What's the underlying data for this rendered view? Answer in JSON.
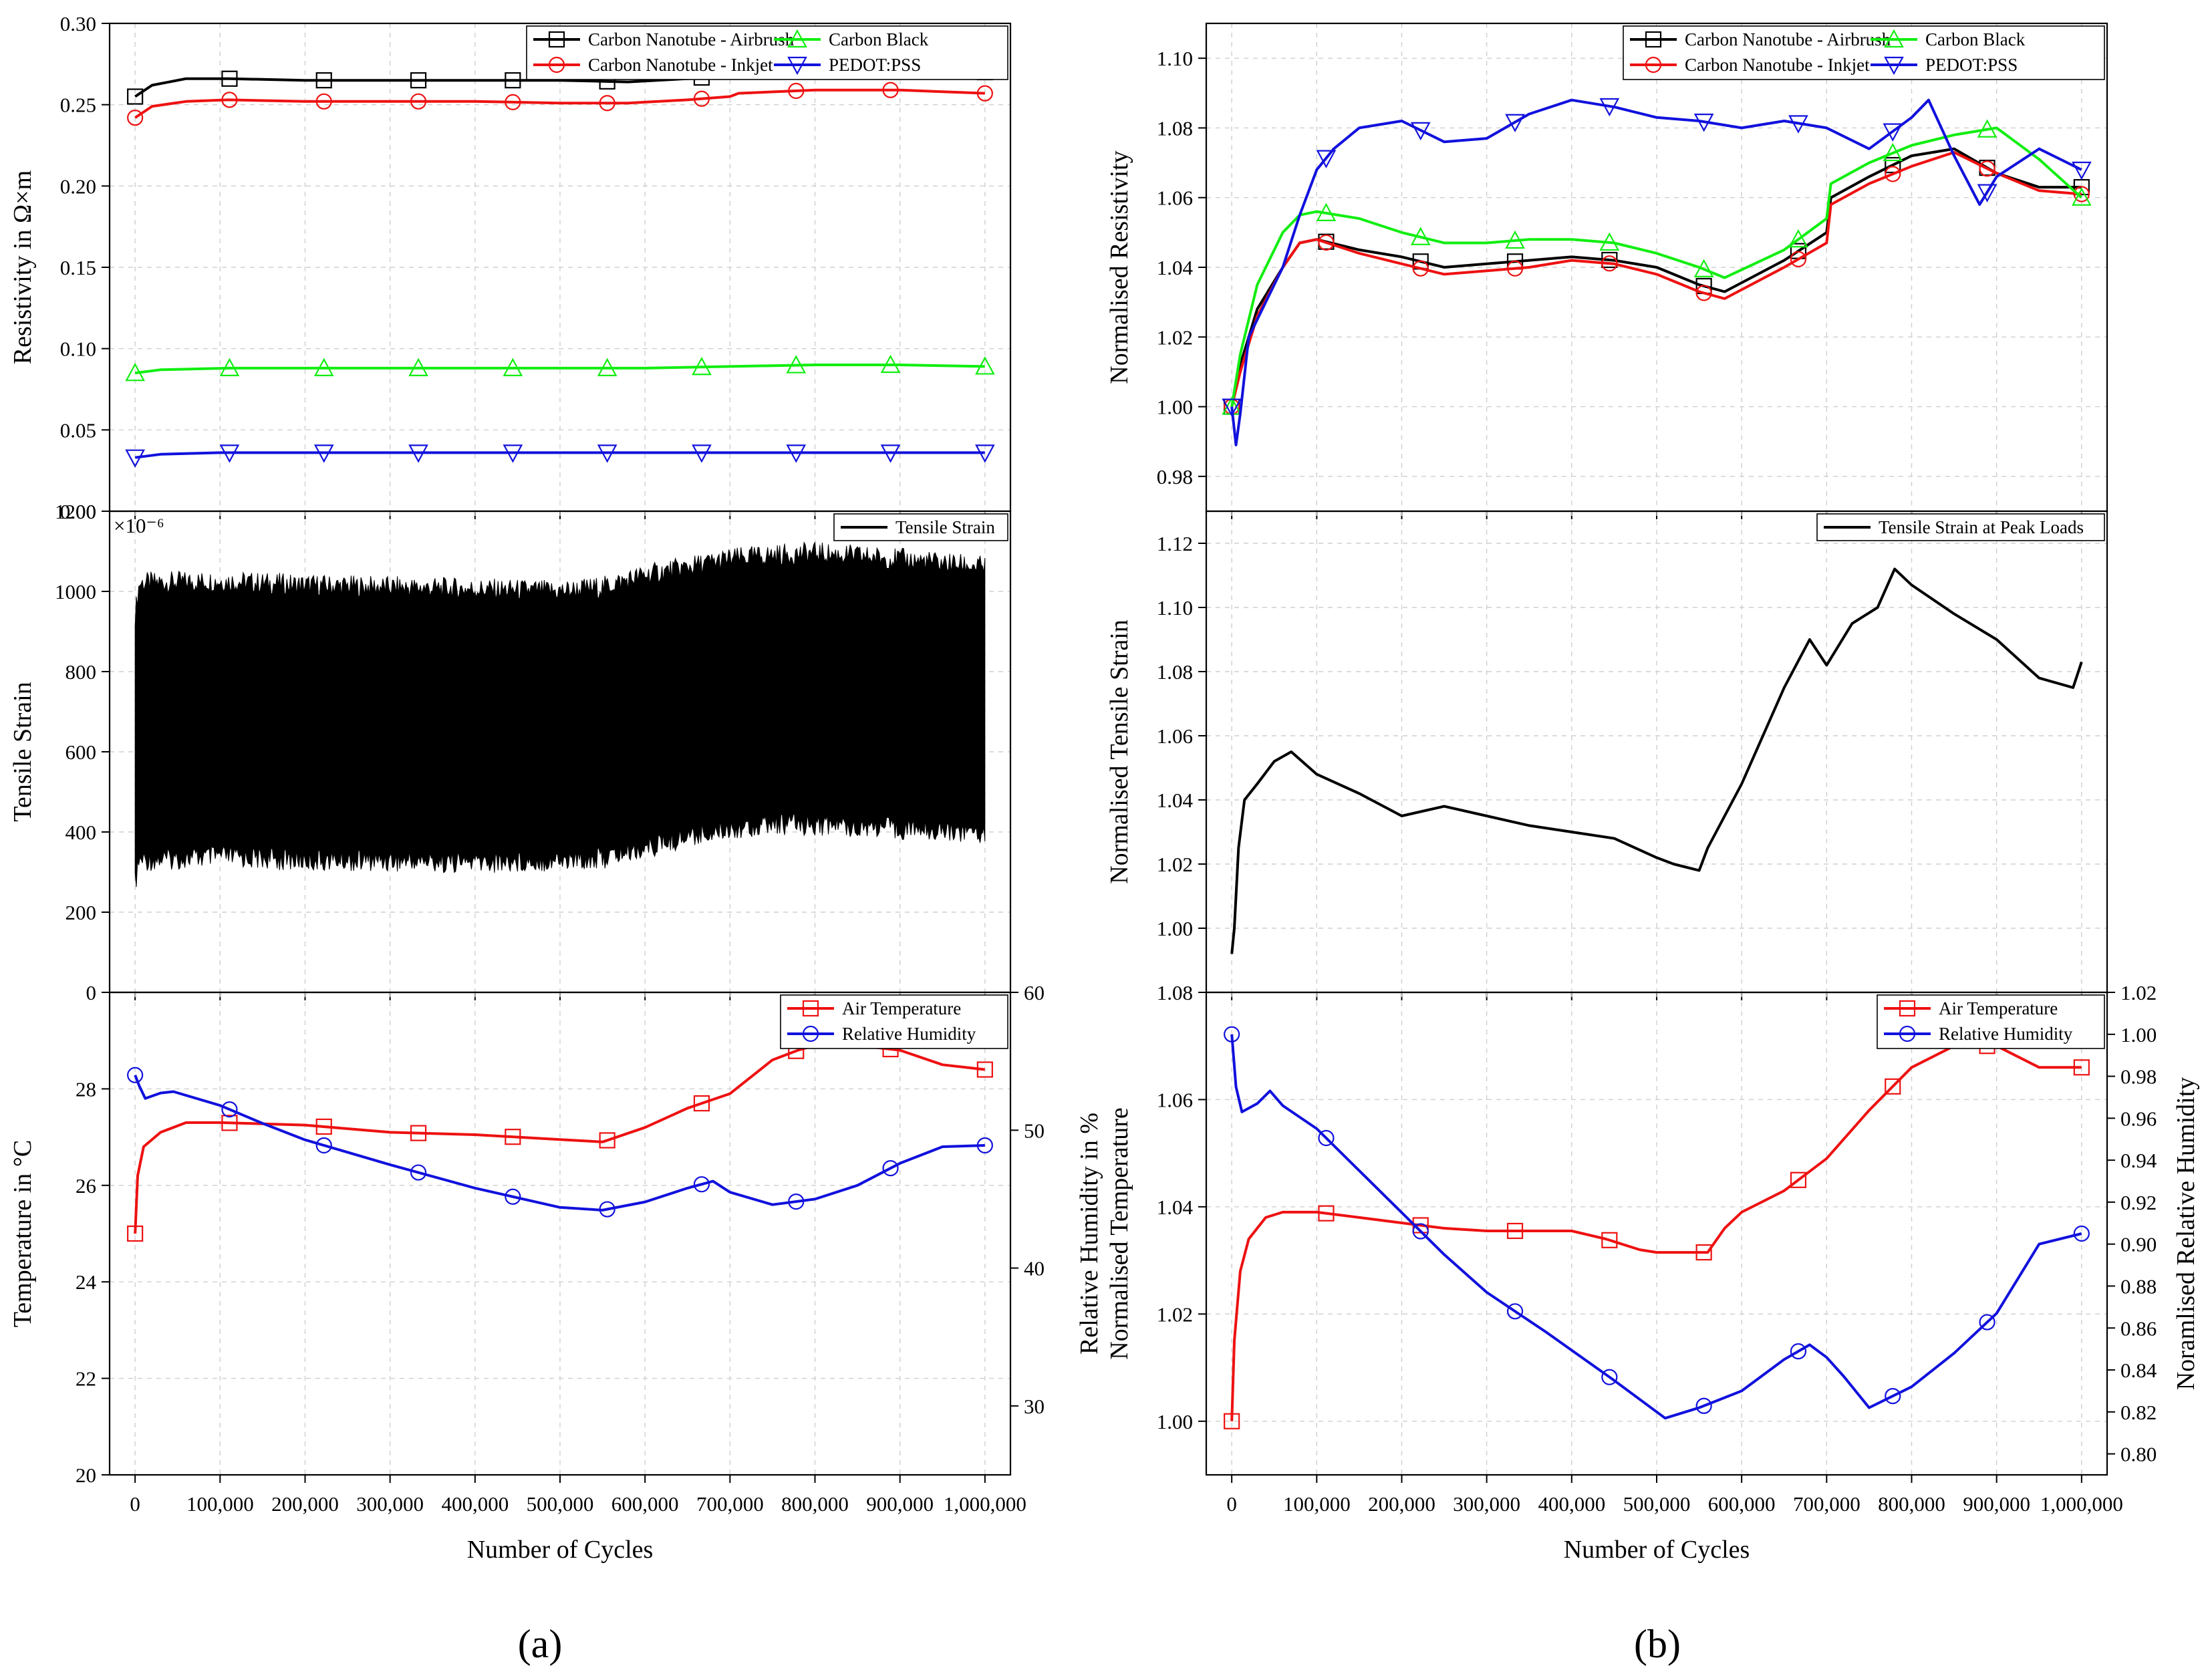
{
  "figure_labels": {
    "a": "(a)",
    "b": "(b)"
  },
  "colors": {
    "black": "#000000",
    "red": "#ee1111",
    "green": "#11ee11",
    "blue": "#1111dd"
  },
  "chart_data": [
    {
      "id": "a-top",
      "panel": "a",
      "type": "line",
      "ylabel": "Resistivity in Ω×m",
      "xlim": [
        0,
        1000000
      ],
      "ylim": [
        0,
        0.3
      ],
      "yticks": [
        0,
        0.05,
        0.1,
        0.15,
        0.2,
        0.25,
        0.3
      ],
      "ytick_labels": [
        "0.00",
        "0.05",
        "0.10",
        "0.15",
        "0.20",
        "0.25",
        "0.30"
      ],
      "legend_placement": "top-right",
      "grid": true,
      "series": [
        {
          "name": "Carbon Nanotube - Airbrush",
          "color": "#000000",
          "marker": "square",
          "x": [
            0,
            20000,
            60000,
            110000,
            200000,
            300000,
            400000,
            500000,
            580000,
            650000,
            700000,
            710000,
            800000,
            900000,
            1000000
          ],
          "y": [
            0.255,
            0.262,
            0.266,
            0.266,
            0.265,
            0.265,
            0.265,
            0.265,
            0.264,
            0.266,
            0.268,
            0.271,
            0.273,
            0.273,
            0.27
          ]
        },
        {
          "name": "Carbon Nanotube - Inkjet",
          "color": "#ee1111",
          "marker": "circle",
          "x": [
            0,
            20000,
            60000,
            110000,
            200000,
            300000,
            400000,
            500000,
            580000,
            650000,
            700000,
            710000,
            800000,
            900000,
            1000000
          ],
          "y": [
            0.242,
            0.249,
            0.252,
            0.253,
            0.252,
            0.252,
            0.252,
            0.251,
            0.251,
            0.253,
            0.255,
            0.257,
            0.259,
            0.259,
            0.257
          ]
        },
        {
          "name": "Carbon Black",
          "color": "#11ee11",
          "marker": "triangle-up",
          "x": [
            0,
            30000,
            110000,
            300000,
            500000,
            600000,
            700000,
            800000,
            900000,
            1000000
          ],
          "y": [
            0.085,
            0.087,
            0.088,
            0.088,
            0.088,
            0.088,
            0.089,
            0.09,
            0.09,
            0.089
          ]
        },
        {
          "name": "PEDOT:PSS",
          "color": "#1111dd",
          "marker": "triangle-down",
          "x": [
            0,
            30000,
            100000,
            300000,
            500000,
            700000,
            900000,
            1000000
          ],
          "y": [
            0.033,
            0.035,
            0.036,
            0.036,
            0.036,
            0.036,
            0.036,
            0.036
          ]
        }
      ]
    },
    {
      "id": "a-mid",
      "panel": "a",
      "type": "area",
      "ylabel": "Tensile Strain",
      "scale_label": "×10⁻⁶",
      "xlim": [
        0,
        1000000
      ],
      "ylim": [
        0,
        1200
      ],
      "yticks": [
        0,
        200,
        400,
        600,
        800,
        1000,
        1200
      ],
      "ytick_labels": [
        "0",
        "200",
        "400",
        "600",
        "800",
        "1000",
        "1200"
      ],
      "legend_placement": "top-right",
      "grid": true,
      "series": [
        {
          "name": "Tensile Strain",
          "color": "#000000",
          "x": [
            0,
            5000,
            100000,
            200000,
            300000,
            400000,
            500000,
            550000,
            600000,
            650000,
            700000,
            750000,
            800000,
            900000,
            1000000
          ],
          "upper": [
            930,
            1010,
            1015,
            1005,
            1000,
            995,
            990,
            1000,
            1030,
            1050,
            1070,
            1080,
            1085,
            1070,
            1050
          ],
          "lower": [
            280,
            340,
            350,
            340,
            340,
            335,
            340,
            345,
            370,
            400,
            420,
            430,
            430,
            420,
            410
          ]
        }
      ]
    },
    {
      "id": "a-bot",
      "panel": "a",
      "type": "line",
      "xlabel": "Number of Cycles",
      "ylabel": "Temperature in °C",
      "ylabel_right": "Relative Humidity in %",
      "xlim": [
        0,
        1000000
      ],
      "ylim": [
        20,
        30
      ],
      "ylim_right": [
        25,
        60
      ],
      "xticks": [
        0,
        100000,
        200000,
        300000,
        400000,
        500000,
        600000,
        700000,
        800000,
        900000,
        1000000
      ],
      "xtick_labels": [
        "0",
        "100,000",
        "200,000",
        "300,000",
        "400,000",
        "500,000",
        "600,000",
        "700,000",
        "800,000",
        "900,000",
        "1,000,000"
      ],
      "yticks": [
        20,
        22,
        24,
        26,
        28
      ],
      "ytick_labels": [
        "20",
        "22",
        "24",
        "26",
        "28"
      ],
      "yticks_right": [
        30,
        40,
        50,
        60
      ],
      "ytick_labels_right": [
        "30",
        "40",
        "50",
        "60"
      ],
      "legend_placement": "top-right",
      "grid": true,
      "series": [
        {
          "name": "Air Temperature",
          "color": "#ee1111",
          "marker": "square",
          "axis": "left",
          "x": [
            0,
            3000,
            10000,
            30000,
            60000,
            100000,
            200000,
            300000,
            400000,
            500000,
            550000,
            600000,
            650000,
            700000,
            750000,
            780000,
            800000,
            850000,
            900000,
            950000,
            1000000
          ],
          "y": [
            25.0,
            26.2,
            26.8,
            27.1,
            27.3,
            27.3,
            27.25,
            27.1,
            27.05,
            26.95,
            26.9,
            27.2,
            27.6,
            27.9,
            28.6,
            28.8,
            28.9,
            28.9,
            28.8,
            28.5,
            28.4
          ]
        },
        {
          "name": "Relative Humidity",
          "color": "#1111dd",
          "marker": "circle",
          "axis": "right",
          "x": [
            0,
            5000,
            12000,
            30000,
            45000,
            100000,
            150000,
            200000,
            300000,
            400000,
            500000,
            550000,
            600000,
            650000,
            680000,
            700000,
            750000,
            800000,
            850000,
            900000,
            950000,
            1000000
          ],
          "y": [
            54,
            53.2,
            52.3,
            52.7,
            52.8,
            51.8,
            50.5,
            49.3,
            47.5,
            45.8,
            44.4,
            44.2,
            44.8,
            45.8,
            46.3,
            45.5,
            44.6,
            45.0,
            46.0,
            47.6,
            48.8,
            48.9
          ]
        }
      ]
    },
    {
      "id": "b-top",
      "panel": "b",
      "type": "line",
      "ylabel": "Normalised Resistivity",
      "xlim": [
        0,
        1000000
      ],
      "ylim": [
        0.97,
        1.11
      ],
      "yticks": [
        0.98,
        1.0,
        1.02,
        1.04,
        1.06,
        1.08,
        1.1
      ],
      "ytick_labels": [
        "0.98",
        "1.00",
        "1.02",
        "1.04",
        "1.06",
        "1.08",
        "1.10"
      ],
      "legend_placement": "top-right",
      "grid": true,
      "series": [
        {
          "name": "Carbon Nanotube - Airbrush",
          "color": "#000000",
          "marker": "square",
          "x": [
            0,
            10000,
            30000,
            60000,
            80000,
            100000,
            150000,
            200000,
            250000,
            300000,
            350000,
            400000,
            450000,
            500000,
            550000,
            580000,
            650000,
            700000,
            705000,
            750000,
            800000,
            850000,
            900000,
            950000,
            1000000
          ],
          "y": [
            1.0,
            1.012,
            1.028,
            1.04,
            1.047,
            1.048,
            1.045,
            1.043,
            1.04,
            1.041,
            1.042,
            1.043,
            1.042,
            1.04,
            1.035,
            1.033,
            1.042,
            1.05,
            1.06,
            1.066,
            1.072,
            1.074,
            1.067,
            1.063,
            1.063
          ]
        },
        {
          "name": "Carbon Nanotube - Inkjet",
          "color": "#ee1111",
          "marker": "circle",
          "x": [
            0,
            10000,
            30000,
            60000,
            80000,
            100000,
            150000,
            200000,
            250000,
            300000,
            350000,
            400000,
            450000,
            500000,
            550000,
            580000,
            650000,
            700000,
            705000,
            750000,
            800000,
            850000,
            900000,
            950000,
            1000000
          ],
          "y": [
            1.0,
            1.01,
            1.026,
            1.04,
            1.047,
            1.048,
            1.044,
            1.041,
            1.038,
            1.039,
            1.04,
            1.042,
            1.041,
            1.038,
            1.033,
            1.031,
            1.04,
            1.047,
            1.058,
            1.064,
            1.069,
            1.073,
            1.067,
            1.062,
            1.061
          ]
        },
        {
          "name": "Carbon Black",
          "color": "#11ee11",
          "marker": "triangle-up",
          "x": [
            0,
            10000,
            30000,
            60000,
            80000,
            100000,
            150000,
            200000,
            250000,
            300000,
            350000,
            400000,
            450000,
            500000,
            550000,
            580000,
            650000,
            700000,
            705000,
            750000,
            800000,
            850000,
            900000,
            950000,
            1000000
          ],
          "y": [
            1.0,
            1.015,
            1.035,
            1.05,
            1.055,
            1.056,
            1.054,
            1.05,
            1.047,
            1.047,
            1.048,
            1.048,
            1.047,
            1.044,
            1.04,
            1.037,
            1.045,
            1.054,
            1.064,
            1.07,
            1.075,
            1.078,
            1.08,
            1.071,
            1.06
          ]
        },
        {
          "name": "PEDOT:PSS",
          "color": "#1111dd",
          "marker": "triangle-down",
          "x": [
            0,
            5000,
            10000,
            20000,
            40000,
            60000,
            80000,
            100000,
            120000,
            150000,
            200000,
            250000,
            300000,
            350000,
            400000,
            450000,
            500000,
            550000,
            600000,
            650000,
            700000,
            750000,
            800000,
            820000,
            850000,
            880000,
            900000,
            950000,
            1000000
          ],
          "y": [
            1.0,
            0.989,
            0.998,
            1.02,
            1.03,
            1.04,
            1.055,
            1.068,
            1.074,
            1.08,
            1.082,
            1.076,
            1.077,
            1.084,
            1.088,
            1.086,
            1.083,
            1.082,
            1.08,
            1.082,
            1.08,
            1.074,
            1.083,
            1.088,
            1.072,
            1.058,
            1.066,
            1.074,
            1.068
          ]
        }
      ]
    },
    {
      "id": "b-mid",
      "panel": "b",
      "type": "line",
      "ylabel": "Normalised Tensile Strain",
      "xlim": [
        0,
        1000000
      ],
      "ylim": [
        0.98,
        1.13
      ],
      "yticks": [
        1.0,
        1.02,
        1.04,
        1.06,
        1.08,
        1.1,
        1.12
      ],
      "ytick_labels": [
        "1.00",
        "1.02",
        "1.04",
        "1.06",
        "1.08",
        "1.10",
        "1.12"
      ],
      "legend_placement": "top-right",
      "grid": true,
      "series": [
        {
          "name": "Tensile Strain at Peak Loads",
          "color": "#000000",
          "x": [
            0,
            3000,
            8000,
            15000,
            30000,
            50000,
            70000,
            100000,
            150000,
            200000,
            250000,
            300000,
            350000,
            400000,
            450000,
            500000,
            520000,
            550000,
            560000,
            600000,
            650000,
            680000,
            700000,
            730000,
            760000,
            780000,
            800000,
            850000,
            900000,
            950000,
            990000,
            1000000
          ],
          "y": [
            0.992,
            1.0,
            1.025,
            1.04,
            1.045,
            1.052,
            1.055,
            1.048,
            1.042,
            1.035,
            1.038,
            1.035,
            1.032,
            1.03,
            1.028,
            1.022,
            1.02,
            1.018,
            1.025,
            1.045,
            1.075,
            1.09,
            1.082,
            1.095,
            1.1,
            1.112,
            1.107,
            1.098,
            1.09,
            1.078,
            1.075,
            1.083
          ]
        }
      ]
    },
    {
      "id": "b-bot",
      "panel": "b",
      "type": "line",
      "xlabel": "Number of Cycles",
      "ylabel": "Normalised Temperature",
      "ylabel_right": "Noramlised Relative Humidity",
      "xlim": [
        0,
        1000000
      ],
      "ylim": [
        0.99,
        1.08
      ],
      "ylim_right": [
        0.79,
        1.02
      ],
      "xticks": [
        0,
        100000,
        200000,
        300000,
        400000,
        500000,
        600000,
        700000,
        800000,
        900000,
        1000000
      ],
      "xtick_labels": [
        "0",
        "100,000",
        "200,000",
        "300,000",
        "400,000",
        "500,000",
        "600,000",
        "700,000",
        "800,000",
        "900,000",
        "1,000,000"
      ],
      "yticks": [
        1.0,
        1.02,
        1.04,
        1.06,
        1.08
      ],
      "ytick_labels": [
        "1.00",
        "1.02",
        "1.04",
        "1.06",
        "1.08"
      ],
      "yticks_right": [
        0.8,
        0.82,
        0.84,
        0.86,
        0.88,
        0.9,
        0.92,
        0.94,
        0.96,
        0.98,
        1.0,
        1.02
      ],
      "ytick_labels_right": [
        "0.80",
        "0.82",
        "0.84",
        "0.86",
        "0.88",
        "0.90",
        "0.92",
        "0.94",
        "0.96",
        "0.98",
        "1.00",
        "1.02"
      ],
      "legend_placement": "top-right",
      "grid": true,
      "series": [
        {
          "name": "Air Temperature",
          "color": "#ee1111",
          "marker": "square",
          "axis": "left",
          "x": [
            0,
            3000,
            10000,
            20000,
            40000,
            60000,
            100000,
            150000,
            200000,
            250000,
            300000,
            400000,
            440000,
            480000,
            500000,
            560000,
            580000,
            600000,
            650000,
            700000,
            750000,
            800000,
            850000,
            900000,
            950000,
            1000000
          ],
          "y": [
            1.0,
            1.015,
            1.028,
            1.034,
            1.038,
            1.039,
            1.039,
            1.038,
            1.037,
            1.036,
            1.0355,
            1.0355,
            1.034,
            1.032,
            1.0315,
            1.0315,
            1.036,
            1.039,
            1.043,
            1.049,
            1.058,
            1.066,
            1.07,
            1.07,
            1.066,
            1.066
          ]
        },
        {
          "name": "Relative Humidity",
          "color": "#1111dd",
          "marker": "circle",
          "axis": "right",
          "x": [
            0,
            5000,
            12000,
            30000,
            45000,
            60000,
            100000,
            150000,
            200000,
            250000,
            300000,
            370000,
            450000,
            510000,
            550000,
            600000,
            650000,
            680000,
            700000,
            720000,
            750000,
            800000,
            850000,
            900000,
            950000,
            1000000
          ],
          "y": [
            1.0,
            0.975,
            0.963,
            0.967,
            0.973,
            0.966,
            0.955,
            0.935,
            0.915,
            0.895,
            0.877,
            0.858,
            0.835,
            0.817,
            0.822,
            0.83,
            0.845,
            0.852,
            0.846,
            0.837,
            0.822,
            0.832,
            0.848,
            0.867,
            0.9,
            0.905
          ]
        }
      ]
    }
  ]
}
